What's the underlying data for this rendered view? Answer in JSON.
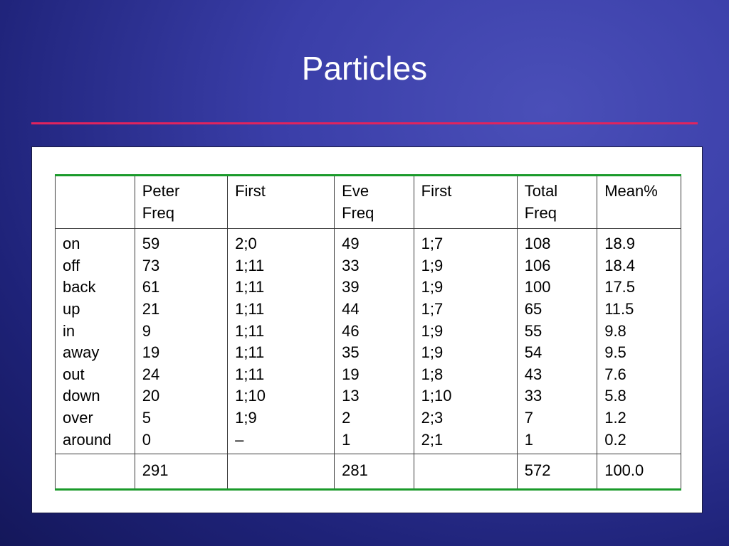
{
  "slide": {
    "title": "Particles"
  },
  "table": {
    "headers": [
      {
        "line1": "",
        "line2": ""
      },
      {
        "line1": "Peter",
        "line2": "Freq"
      },
      {
        "line1": "First",
        "line2": ""
      },
      {
        "line1": "Eve",
        "line2": "Freq"
      },
      {
        "line1": "First",
        "line2": ""
      },
      {
        "line1": "Total",
        "line2": "Freq"
      },
      {
        "line1": "Mean%",
        "line2": ""
      }
    ],
    "rows": [
      [
        "on",
        "59",
        "2;0",
        "49",
        "1;7",
        "108",
        "18.9"
      ],
      [
        "off",
        "73",
        "1;11",
        "33",
        "1;9",
        "106",
        "18.4"
      ],
      [
        "back",
        "61",
        "1;11",
        "39",
        "1;9",
        "100",
        "17.5"
      ],
      [
        "up",
        "21",
        "1;11",
        "44",
        "1;7",
        "65",
        "11.5"
      ],
      [
        "in",
        "9",
        "1;11",
        "46",
        "1;9",
        "55",
        "9.8"
      ],
      [
        "away",
        "19",
        "1;11",
        "35",
        "1;9",
        "54",
        "9.5"
      ],
      [
        "out",
        "24",
        "1;11",
        "19",
        "1;8",
        "43",
        "7.6"
      ],
      [
        "down",
        "20",
        "1;10",
        "13",
        "1;10",
        "33",
        "5.8"
      ],
      [
        "over",
        "5",
        "1;9",
        "2",
        "2;3",
        "7",
        "1.2"
      ],
      [
        "around",
        "0",
        "–",
        "1",
        "2;1",
        "1",
        "0.2"
      ]
    ],
    "totals": [
      "",
      "291",
      "",
      "281",
      "",
      "572",
      "100.0"
    ]
  },
  "colors": {
    "background": "#3a3ea8",
    "title_text": "#ffffff",
    "title_rule": "#e0245e",
    "table_accent_rule": "#1a9a2a"
  }
}
